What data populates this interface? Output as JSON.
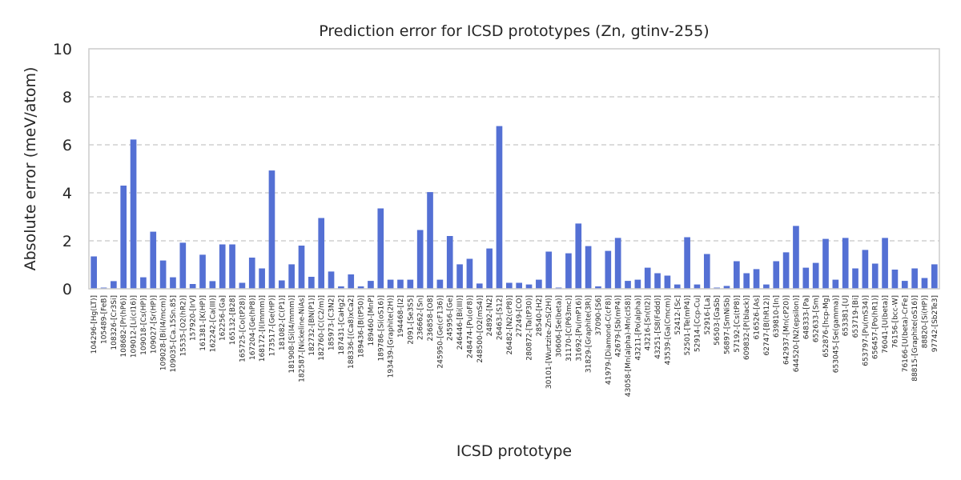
{
  "chart_data": {
    "type": "bar",
    "title": "Prediction error for ICSD prototypes (Zn, gtinv-255)",
    "xlabel": "ICSD prototype",
    "ylabel": "Absolute error (meV/atom)",
    "ylim": [
      0,
      10
    ],
    "yticks": [
      "0",
      "2",
      "4",
      "6",
      "8",
      "10"
    ],
    "grid": "y-dashed",
    "categories": [
      "104296-[Hg(LT)]",
      "105489-[FeB]",
      "108326-[Cr3Si]",
      "108682-[Pr(hP6)]",
      "109012-[Li(cI16)]",
      "109018-[Cs(HP)]",
      "109027-[Sr(HP)]",
      "109028-[Bi(I4/mcm)]",
      "109035-[Ca.15Sn.85]",
      "15535-[O2(hR2)]",
      "157920-[IrV]",
      "161381-[K(HP)]",
      "162242-[Ca(III)]",
      "162256-[Ga]",
      "165132-[B28]",
      "165725-[Co(tP28)]",
      "167204-[Ge(hP8)]",
      "168172-[I(Immm)]",
      "173517-[Ge(HP)]",
      "181082-[C(P1)]",
      "181908-[Si(I4/mmm)]",
      "182587-[Nickeline-NiAs]",
      "182732-[BN(P1)]",
      "182760-[C(C2/m)]",
      "185973-[C3N2]",
      "187431-[CaHg2]",
      "188336-[(Ca8)xCa2]",
      "189436-[B(tP50)]",
      "189460-[MnP]",
      "189786-[Si(oS16)]",
      "193439-[Graphite(2H)]",
      "194468-[I2]",
      "2091-[Se3S5]",
      "236662-[Sn]",
      "236858-[O8]",
      "245950-[Ge(cF136)]",
      "245956-[Ge]",
      "246446-[Bi(III)]",
      "248474-[Pu(oF8)]",
      "248500-[O2(mS4)]",
      "24892-[N2]",
      "26463-[S12]",
      "26482-[N2(cP8)]",
      "27249-[CO]",
      "280872-[Ta(tP30)]",
      "28540-[H2]",
      "30101-[Wurtzite-ZnS(2H)]",
      "30606-[Se(beta)]",
      "31170-[C(P63mc)]",
      "31692-[Pu(mP16)]",
      "31829-[Graphite(3R)]",
      "37090-[S6]",
      "41979-[Diamond-C(cF8)]",
      "42679-[Sb(mP4)]",
      "43058-[Mn(alpha)-Mn(cI58)]",
      "43211-[Po(alpha)]",
      "43216-[Sn(tI2)]",
      "43251-[S8(Fddd)]",
      "43539-[Ga(Cmcm)]",
      "52412-[Sc]",
      "52501-[Te(mP4)]",
      "52914-[Ccp-Cu]",
      "52916-[La]",
      "56503-[GaSb]",
      "56897-[SmNiSb]",
      "57192-[Cs(tP8)]",
      "609832-[P(black)]",
      "616526-[As]",
      "62747-[B(hR12)]",
      "639810-[In]",
      "642937-[Mn(cP20)]",
      "644520-[N2(epsilon)]",
      "648333-[Pa]",
      "652633-[Sm]",
      "652876-[hcp-Mg]",
      "653045-[Se(gamma)]",
      "653381-[U]",
      "653719-[Bi]",
      "653797-[Pu(mS34)]",
      "656457-[Po(hR1)]",
      "76041-[U(beta)]",
      "76156-[bcc-W]",
      "76166-[U(beta)-CrFe]",
      "88815-[Graphite(oS16)]",
      "88820-[Si(HP)]",
      "97742-[Sb2Te3]"
    ],
    "values": [
      1.35,
      0.05,
      0.32,
      4.3,
      6.22,
      0.48,
      2.38,
      1.18,
      0.48,
      1.92,
      0.2,
      1.42,
      0.32,
      1.85,
      1.85,
      0.25,
      1.3,
      0.85,
      4.93,
      0.35,
      1.02,
      1.8,
      0.5,
      2.95,
      0.72,
      0.1,
      0.6,
      0.1,
      0.33,
      3.35,
      0.38,
      0.38,
      0.38,
      2.45,
      4.03,
      0.38,
      2.2,
      1.02,
      1.25,
      0.22,
      1.68,
      6.78,
      0.25,
      0.25,
      0.18,
      0.38,
      1.55,
      0.05,
      1.48,
      2.72,
      1.78,
      0.1,
      1.58,
      2.12,
      0.33,
      0.38,
      0.88,
      0.65,
      0.55,
      0.18,
      2.15,
      0.18,
      1.45,
      0.05,
      0.12,
      1.15,
      0.65,
      0.82,
      0.18,
      1.15,
      1.52,
      2.62,
      0.88,
      1.08,
      2.08,
      0.38,
      2.12,
      0.85,
      1.62,
      1.05,
      2.12,
      0.8,
      0.33,
      0.85,
      0.45,
      1.02
    ]
  }
}
